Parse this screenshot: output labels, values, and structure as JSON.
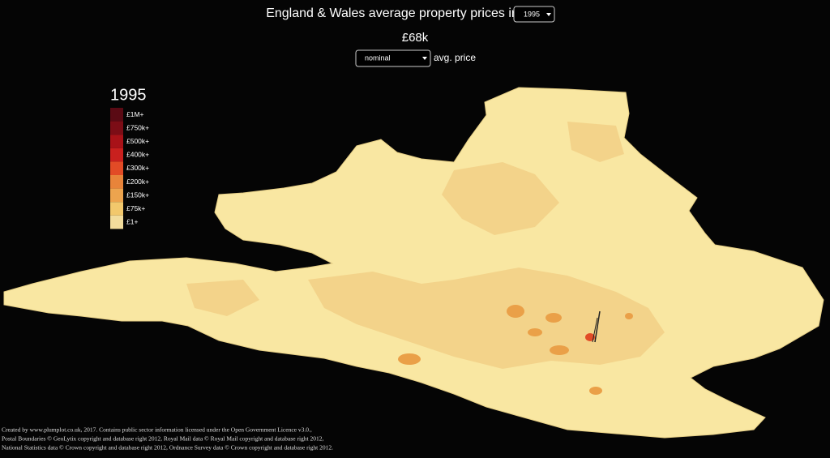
{
  "header": {
    "title": "England & Wales average property prices in",
    "year_select": "1995",
    "average": "£68k",
    "price_select": "nominal",
    "price_label": "avg. price"
  },
  "legend": {
    "title": "1995",
    "items": [
      {
        "label": "£1M+",
        "color": "#5a0a14"
      },
      {
        "label": "£750k+",
        "color": "#7c0d16"
      },
      {
        "label": "£500k+",
        "color": "#a81218"
      },
      {
        "label": "£400k+",
        "color": "#c9201e"
      },
      {
        "label": "£300k+",
        "color": "#e24b26"
      },
      {
        "label": "£200k+",
        "color": "#e8843a"
      },
      {
        "label": "£150k+",
        "color": "#eda44e"
      },
      {
        "label": "£75k+",
        "color": "#f2c86c"
      },
      {
        "label": "£1+",
        "color": "#f2dc9c"
      }
    ]
  },
  "credits": [
    "Created by www.plumplot.co.uk, 2017. Contains public sector information licensed under the Open Government Licence v3.0.,",
    "Postal Boundaries © GeoLytix copyright and database right 2012, Royal Mail data © Royal Mail copyright and database right 2012,",
    "National Statistics data © Crown copyright and database right 2012, Ordnance Survey data © Crown copyright and database right 2012."
  ]
}
